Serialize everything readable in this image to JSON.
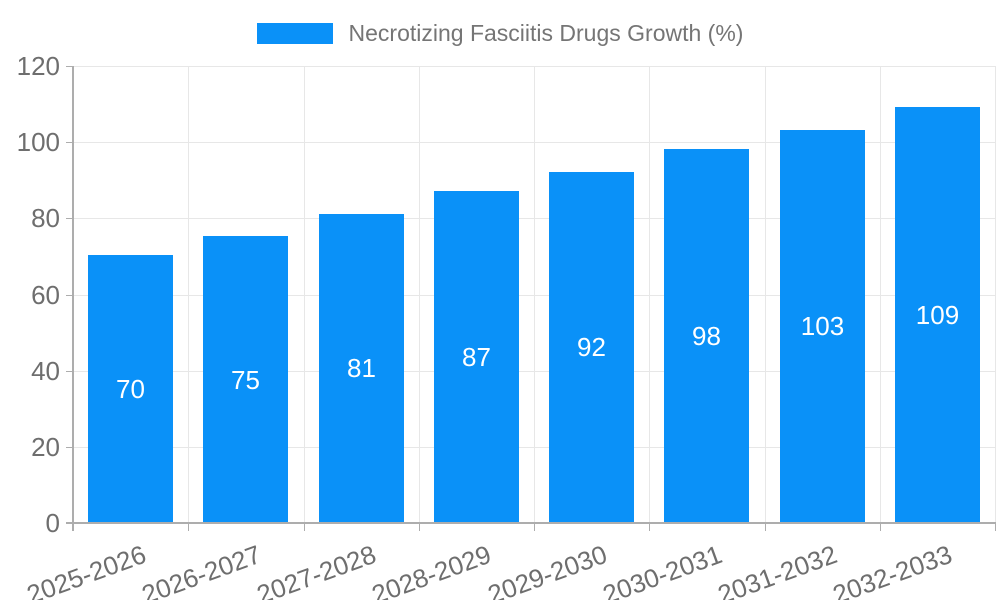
{
  "legend": {
    "label": "Necrotizing Fasciitis Drugs Growth (%)"
  },
  "chart_data": {
    "type": "bar",
    "title": "Necrotizing Fasciitis Drugs Growth (%)",
    "series_name": "Necrotizing Fasciitis Drugs Growth (%)",
    "categories": [
      "2025-2026",
      "2026-2027",
      "2027-2028",
      "2028-2029",
      "2029-2030",
      "2030-2031",
      "2031-2032",
      "2032-2033"
    ],
    "values": [
      70,
      75,
      81,
      87,
      92,
      98,
      103,
      109
    ],
    "bar_labels": [
      "70",
      "75",
      "81",
      "87",
      "92",
      "98",
      "103",
      "109"
    ],
    "xlabel": "",
    "ylabel": "",
    "ylim": [
      0,
      120
    ],
    "y_ticks": [
      0,
      20,
      40,
      60,
      80,
      100,
      120
    ],
    "grid": true,
    "legend_position": "top-center",
    "x_label_rotation_deg": -20,
    "colors": {
      "bar": "#0a91f8",
      "grid_line": "#e7e7e7",
      "axis_line": "#adadad",
      "tick_label": "#6e6e6e",
      "legend_text": "#757575",
      "bar_label": "#ffffff"
    }
  }
}
